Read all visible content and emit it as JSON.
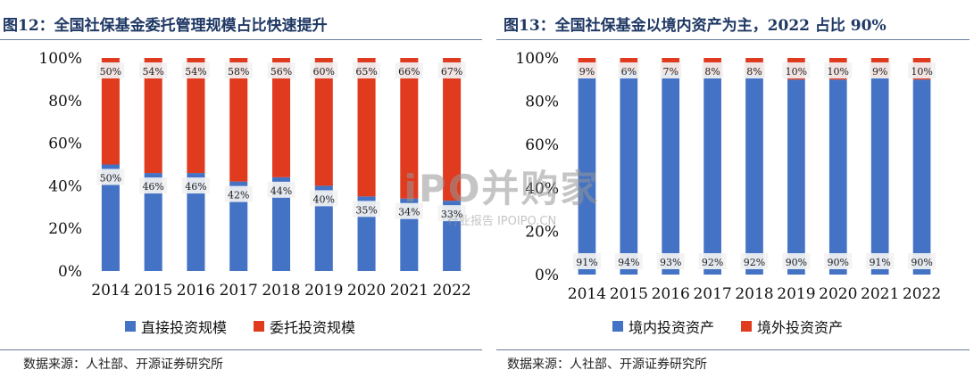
{
  "charts": [
    {
      "title": "图12：全国社保基金委托管理规模占比快速提升",
      "source": "数据来源：人社部、开源证券研究所",
      "legend": [
        {
          "label": "直接投资规模",
          "color": "#4472c4"
        },
        {
          "label": "委托投资规模",
          "color": "#e03a1f"
        }
      ]
    },
    {
      "title": "图13：全国社保基金以境内资产为主，2022 占比 90%",
      "source": "数据来源：人社部、开源证券研究所",
      "legend": [
        {
          "label": "境内投资资产",
          "color": "#4472c4"
        },
        {
          "label": "境外投资资产",
          "color": "#e03a1f"
        }
      ]
    }
  ],
  "watermark": {
    "main": "iPO并购家",
    "sub": "行业报告 IPOIPO.CN"
  },
  "chart_data": [
    {
      "type": "bar",
      "stacked": true,
      "percent": true,
      "title": "图12：全国社保基金委托管理规模占比快速提升",
      "categories": [
        "2014",
        "2015",
        "2016",
        "2017",
        "2018",
        "2019",
        "2020",
        "2021",
        "2022"
      ],
      "series": [
        {
          "name": "直接投资规模",
          "color": "#4472c4",
          "values": [
            50,
            46,
            46,
            42,
            44,
            40,
            35,
            34,
            33
          ]
        },
        {
          "name": "委托投资规模",
          "color": "#e03a1f",
          "values": [
            50,
            54,
            54,
            58,
            56,
            60,
            65,
            66,
            67
          ]
        }
      ],
      "y_ticks": [
        "0%",
        "20%",
        "40%",
        "60%",
        "80%",
        "100%"
      ],
      "ylim": [
        0,
        100
      ],
      "grid": false,
      "legend_position": "bottom"
    },
    {
      "type": "bar",
      "stacked": true,
      "percent": true,
      "title": "图13：全国社保基金以境内资产为主，2022 占比 90%",
      "categories": [
        "2014",
        "2015",
        "2016",
        "2017",
        "2018",
        "2019",
        "2020",
        "2021",
        "2022"
      ],
      "series": [
        {
          "name": "境内投资资产",
          "color": "#4472c4",
          "values": [
            91,
            94,
            93,
            92,
            92,
            90,
            90,
            91,
            90
          ]
        },
        {
          "name": "境外投资资产",
          "color": "#e03a1f",
          "values": [
            9,
            6,
            7,
            8,
            8,
            10,
            10,
            9,
            10
          ]
        }
      ],
      "y_ticks": [
        "0%",
        "20%",
        "40%",
        "60%",
        "80%",
        "100%"
      ],
      "ylim": [
        0,
        100
      ],
      "grid": false,
      "legend_position": "bottom"
    }
  ]
}
